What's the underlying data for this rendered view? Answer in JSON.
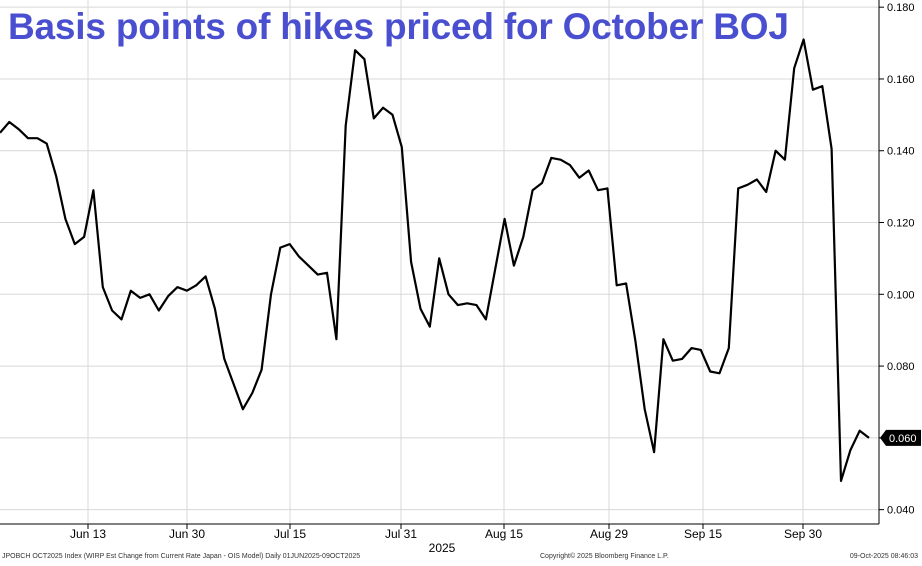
{
  "chart_data": {
    "type": "line",
    "title": "Basis points of hikes priced for October BOJ",
    "year_label": "2025",
    "ylim": [
      0.036,
      0.182
    ],
    "y_ticks": [
      "0.040",
      "0.060",
      "0.080",
      "0.100",
      "0.120",
      "0.140",
      "0.160",
      "0.180"
    ],
    "x_ticks": [
      "Jun 13",
      "Jun 30",
      "Jul 15",
      "Jul 31",
      "Aug 15",
      "Aug 29",
      "Sep 15",
      "Sep 30"
    ],
    "last_value_label": "0.060",
    "series": [
      {
        "values": [
          0.145,
          0.148,
          0.146,
          0.1435,
          0.1435,
          0.142,
          0.133,
          0.121,
          0.114,
          0.116,
          0.129,
          0.102,
          0.0955,
          0.093,
          0.101,
          0.099,
          0.1,
          0.0955,
          0.0995,
          0.102,
          0.101,
          0.1025,
          0.105,
          0.096,
          0.082,
          0.075,
          0.068,
          0.0725,
          0.079,
          0.1,
          0.113,
          0.114,
          0.1105,
          0.108,
          0.1055,
          0.106,
          0.0875,
          0.147,
          0.168,
          0.1655,
          0.149,
          0.152,
          0.15,
          0.141,
          0.109,
          0.096,
          0.091,
          0.11,
          0.1,
          0.097,
          0.0975,
          0.097,
          0.093,
          0.107,
          0.121,
          0.108,
          0.116,
          0.129,
          0.131,
          0.138,
          0.1375,
          0.136,
          0.1325,
          0.1345,
          0.129,
          0.1295,
          0.1025,
          0.103,
          0.087,
          0.068,
          0.056,
          0.0875,
          0.0815,
          0.082,
          0.085,
          0.0845,
          0.0785,
          0.078,
          0.085,
          0.1295,
          0.1305,
          0.132,
          0.1285,
          0.14,
          0.1375,
          0.163,
          0.171,
          0.157,
          0.158,
          0.1405,
          0.048,
          0.0565,
          0.062,
          0.06
        ]
      }
    ],
    "colors": {
      "title": "#4a4fcf",
      "line": "#000000",
      "grid": "#d8d8d8",
      "axis": "#000000"
    }
  },
  "footer": {
    "left": "JPOBCH OCT2025 Index (WIRP Est Change from Current Rate Japan - OIS Model) Daily 01JUN2025-09OCT2025",
    "center": "Copyright© 2025 Bloomberg Finance L.P.",
    "right": "09-Oct-2025 08:46:03"
  }
}
